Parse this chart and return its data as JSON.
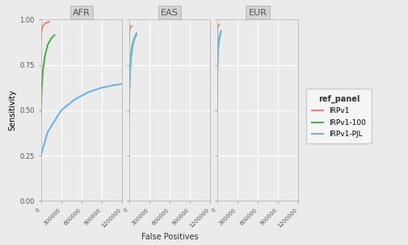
{
  "panels": [
    "AFR",
    "EAS",
    "EUR"
  ],
  "ref_panels": [
    "IRPv1",
    "IRPv1-100",
    "IRPv1-PJL"
  ],
  "colors": [
    "#F08080",
    "#4DAF4A",
    "#6EB4E8"
  ],
  "background_color": "#EBEBEB",
  "grid_color": "white",
  "xlim": [
    0,
    1200000
  ],
  "ylim": [
    0.0,
    1.0
  ],
  "yticks": [
    0.0,
    0.25,
    0.5,
    0.75,
    1.0
  ],
  "xticks": [
    0,
    300000,
    600000,
    900000,
    1200000
  ],
  "xlabel": "False Positives",
  "ylabel": "Sensitivity",
  "legend_title": "ref_panel",
  "curves": {
    "AFR": {
      "IRPv1": {
        "fp": [
          0,
          5000,
          15000,
          30000,
          50000,
          80000,
          120000
        ],
        "sens": [
          0.88,
          0.92,
          0.95,
          0.965,
          0.975,
          0.982,
          0.988
        ]
      },
      "IRPv1-100": {
        "fp": [
          0,
          10000,
          30000,
          60000,
          100000,
          150000,
          200000
        ],
        "sens": [
          0.47,
          0.6,
          0.72,
          0.8,
          0.86,
          0.895,
          0.915
        ]
      },
      "IRPv1-PJL": {
        "fp": [
          0,
          100000,
          300000,
          500000,
          700000,
          900000,
          1100000,
          1200000
        ],
        "sens": [
          0.25,
          0.38,
          0.5,
          0.56,
          0.6,
          0.625,
          0.64,
          0.645
        ]
      }
    },
    "EAS": {
      "IRPv1": {
        "fp": [
          0,
          3000,
          8000,
          15000,
          25000,
          40000
        ],
        "sens": [
          0.88,
          0.91,
          0.935,
          0.95,
          0.96,
          0.965
        ]
      },
      "IRPv1-100": {
        "fp": [
          0,
          5000,
          15000,
          30000,
          50000,
          80000,
          110000
        ],
        "sens": [
          0.47,
          0.6,
          0.72,
          0.805,
          0.86,
          0.895,
          0.915
        ]
      },
      "IRPv1-PJL": {
        "fp": [
          0,
          3000,
          10000,
          20000,
          35000,
          55000,
          80000,
          110000
        ],
        "sens": [
          0.48,
          0.55,
          0.65,
          0.73,
          0.8,
          0.855,
          0.895,
          0.925
        ]
      }
    },
    "EUR": {
      "IRPv1": {
        "fp": [
          0,
          2000,
          5000,
          10000,
          18000,
          30000
        ],
        "sens": [
          0.89,
          0.92,
          0.94,
          0.955,
          0.965,
          0.972
        ]
      },
      "IRPv1-100": {
        "fp": [
          0,
          3000,
          8000,
          15000,
          25000,
          40000,
          60000
        ],
        "sens": [
          0.5,
          0.62,
          0.74,
          0.82,
          0.875,
          0.91,
          0.935
        ]
      },
      "IRPv1-PJL": {
        "fp": [
          0,
          3000,
          8000,
          15000,
          25000,
          40000,
          60000
        ],
        "sens": [
          0.52,
          0.64,
          0.76,
          0.835,
          0.88,
          0.91,
          0.935
        ]
      }
    }
  }
}
